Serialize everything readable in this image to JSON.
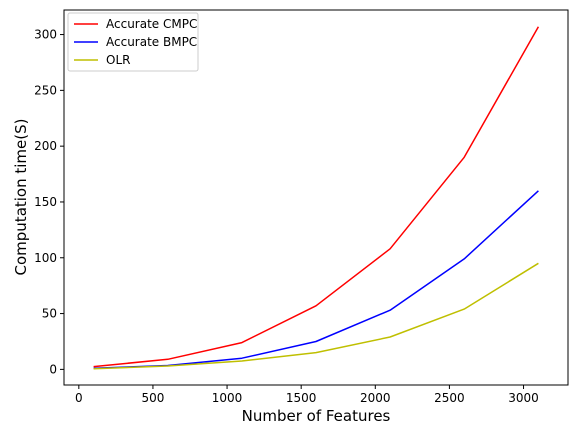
{
  "chart_data": {
    "type": "line",
    "title": "",
    "xlabel": "Number of Features",
    "ylabel": "Computation time(S)",
    "xlim": [
      -100,
      3300
    ],
    "ylim": [
      -14,
      322
    ],
    "xticks": [
      0,
      500,
      1000,
      1500,
      2000,
      2500,
      3000
    ],
    "yticks": [
      0,
      50,
      100,
      150,
      200,
      250,
      300
    ],
    "grid": false,
    "legend_position": "top-left",
    "x": [
      100,
      600,
      1100,
      1600,
      2100,
      2600,
      3100
    ],
    "series": [
      {
        "name": "Accurate CMPC",
        "color": "#ff0000",
        "values": [
          2.5,
          9,
          24,
          57,
          108,
          190,
          307
        ]
      },
      {
        "name": "Accurate BMPC",
        "color": "#0000ff",
        "values": [
          1,
          3.5,
          10,
          25,
          53,
          99,
          160
        ]
      },
      {
        "name": "OLR",
        "color": "#bfbf00",
        "values": [
          0.5,
          3,
          7.5,
          15,
          29,
          54,
          95
        ]
      }
    ]
  }
}
